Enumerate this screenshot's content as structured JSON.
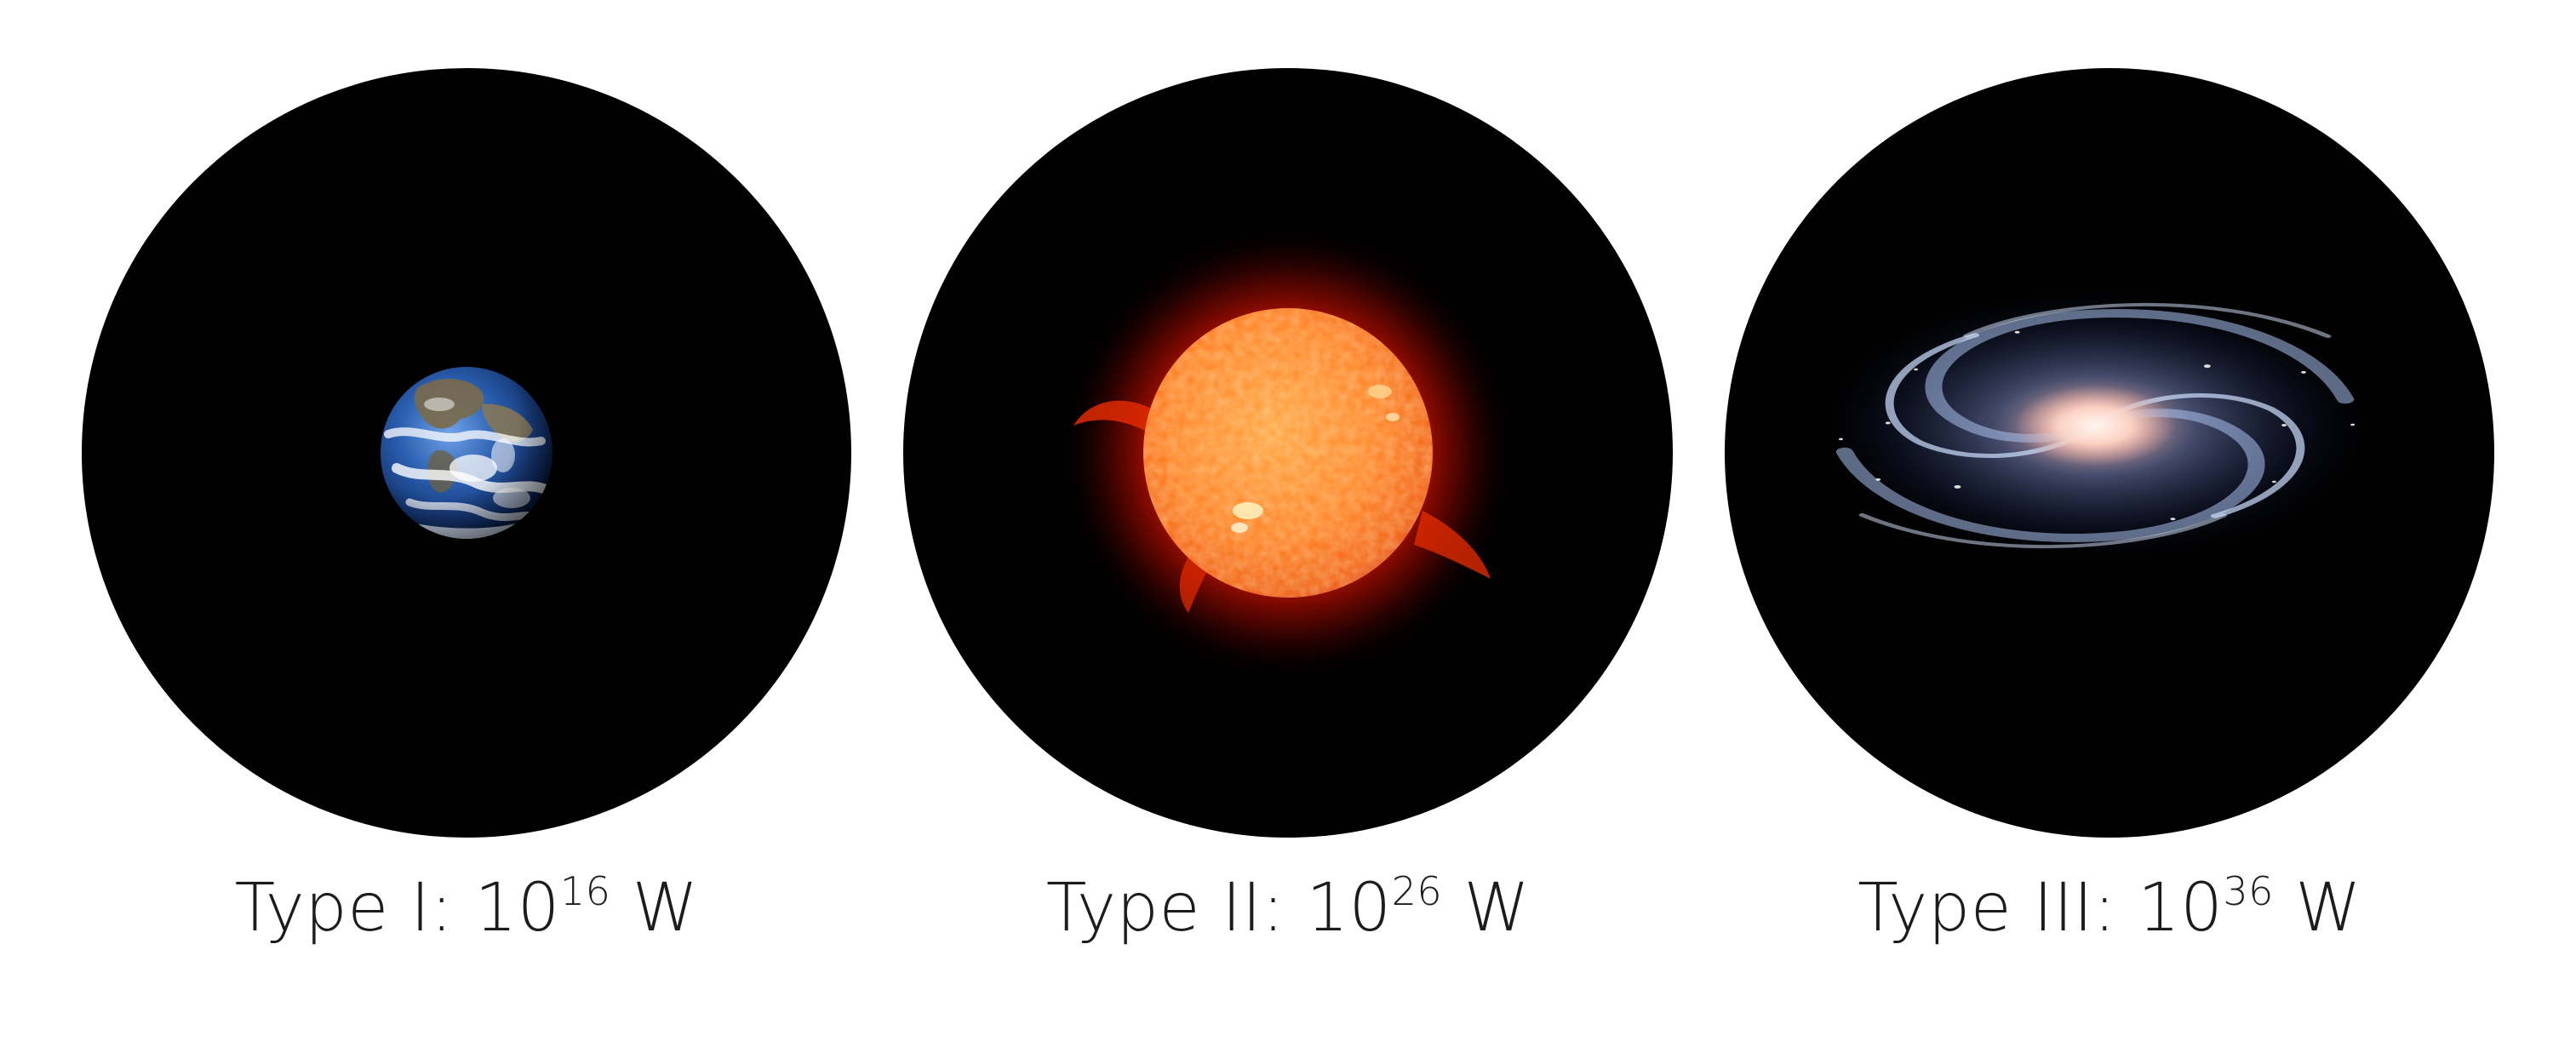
{
  "panels": [
    {
      "subject_icon": "earth-icon",
      "label_prefix": "Type I: 10",
      "exponent": "16",
      "unit": " W"
    },
    {
      "subject_icon": "sun-icon",
      "label_prefix": "Type II: 10",
      "exponent": "26",
      "unit": " W"
    },
    {
      "subject_icon": "galaxy-icon",
      "label_prefix": "Type III: 10",
      "exponent": "36",
      "unit": " W"
    }
  ],
  "colors": {
    "background": "#ffffff",
    "disc": "#000000",
    "caption_text": "#1c1c1c",
    "earth_ocean": "#2a5fb0",
    "sun_surface": "#ff7a1a",
    "sun_corona": "#d81400",
    "galaxy_core": "#ffd6c8",
    "galaxy_arms": "#a9c1ee"
  }
}
